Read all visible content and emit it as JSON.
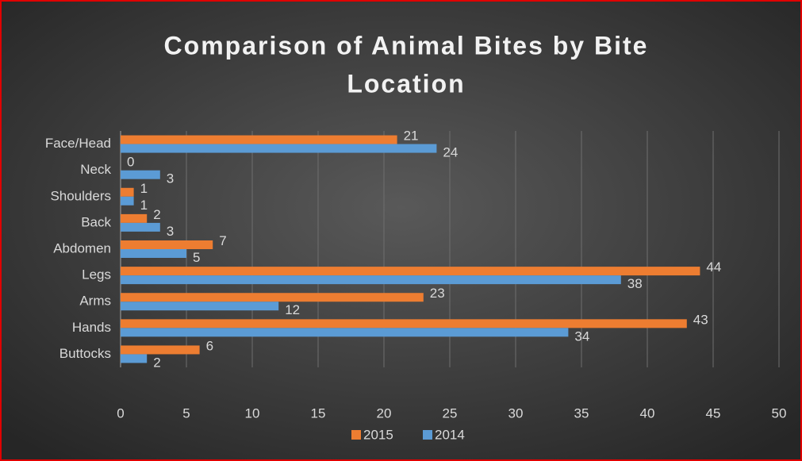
{
  "chart_data": {
    "type": "bar",
    "orientation": "horizontal",
    "title_lines": [
      "Comparison of Animal Bites by Bite",
      "Location"
    ],
    "categories": [
      "Face/Head",
      "Neck",
      "Shoulders",
      "Back",
      "Abdomen",
      "Legs",
      "Arms",
      "Hands",
      "Buttocks"
    ],
    "series": [
      {
        "name": "2015",
        "color": "#ed7d31",
        "values": [
          21,
          0,
          1,
          2,
          7,
          44,
          23,
          43,
          6
        ]
      },
      {
        "name": "2014",
        "color": "#5b9bd5",
        "values": [
          24,
          3,
          1,
          3,
          5,
          38,
          12,
          34,
          2
        ]
      }
    ],
    "xlim": [
      0,
      50
    ],
    "xticks": [
      0,
      5,
      10,
      15,
      20,
      25,
      30,
      35,
      40,
      45,
      50
    ],
    "grid": true,
    "legend": "bottom"
  }
}
